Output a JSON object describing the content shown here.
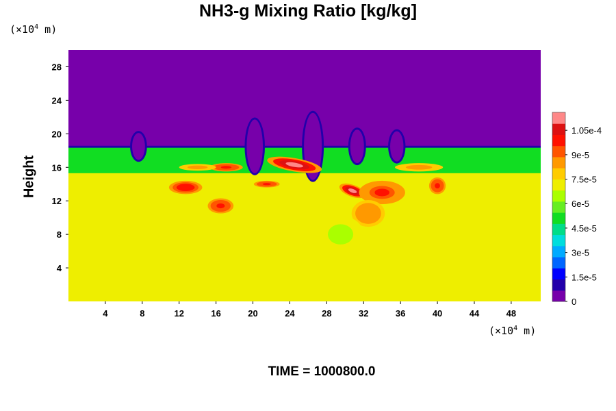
{
  "chart_data": {
    "type": "heatmap",
    "title": "NH3-g Mixing Ratio [kg/kg]",
    "ylabel": "Height",
    "xlabel": "",
    "x_unit": {
      "prefix": "(×10",
      "exp": "4",
      "suffix": " m)"
    },
    "y_unit": {
      "prefix": "(×10",
      "exp": "4",
      "suffix": " m)"
    },
    "x_ticks": [
      4,
      8,
      12,
      16,
      20,
      24,
      28,
      32,
      36,
      40,
      44,
      48
    ],
    "y_ticks": [
      4,
      8,
      12,
      16,
      20,
      24,
      28
    ],
    "xlim": [
      0,
      51.2
    ],
    "ylim": [
      0,
      30
    ],
    "colorbar": {
      "ticks": [
        0,
        1.5e-05,
        3e-05,
        4.5e-05,
        6e-05,
        7.5e-05,
        9e-05,
        0.000105
      ],
      "tick_labels": [
        "0",
        "1.5e-5",
        "3e-5",
        "4.5e-5",
        "6e-5",
        "7.5e-5",
        "9e-5",
        "1.05e-4"
      ],
      "range": [
        0,
        0.000116
      ],
      "colors": [
        "#7700aa",
        "#2200aa",
        "#0000ff",
        "#0066ff",
        "#00aaff",
        "#00dddd",
        "#00dd88",
        "#11dd22",
        "#66ee22",
        "#aaff00",
        "#eeee00",
        "#ffcc00",
        "#ff9900",
        "#ff5500",
        "#ff1100",
        "#dd1111",
        "#ff8888"
      ]
    },
    "field": {
      "upper_value": 0,
      "tropopause_height": 18.5,
      "band_range": [
        15.3,
        18.4
      ],
      "band_value": 5e-05,
      "lower_value": 7.5e-05,
      "dips": [
        {
          "x": 7.6,
          "depth": 1.6
        },
        {
          "x": 20.2,
          "depth": 3.2
        },
        {
          "x": 26.5,
          "depth": 4.0
        },
        {
          "x": 31.3,
          "depth": 2.0
        },
        {
          "x": 35.6,
          "depth": 1.8
        }
      ],
      "plumes": [
        {
          "x": 24.5,
          "y": 16.3,
          "rx": 3.0,
          "ry": 0.8,
          "v": 0.000112,
          "rot": 10
        },
        {
          "x": 30.8,
          "y": 13.2,
          "rx": 1.5,
          "ry": 0.7,
          "v": 0.000112,
          "rot": 20
        },
        {
          "x": 12.7,
          "y": 13.6,
          "rx": 1.8,
          "ry": 0.8,
          "v": 0.000102,
          "rot": 0
        },
        {
          "x": 17.1,
          "y": 16.0,
          "rx": 1.8,
          "ry": 0.5,
          "v": 0.0001,
          "rot": 0
        },
        {
          "x": 16.5,
          "y": 11.4,
          "rx": 1.4,
          "ry": 0.9,
          "v": 0.0001,
          "rot": 0
        },
        {
          "x": 40.0,
          "y": 13.8,
          "rx": 0.9,
          "ry": 1.0,
          "v": 0.0001,
          "rot": 0
        },
        {
          "x": 34.0,
          "y": 13.0,
          "rx": 2.5,
          "ry": 1.4,
          "v": 9.6e-05,
          "rot": 0
        },
        {
          "x": 32.5,
          "y": 10.5,
          "rx": 1.8,
          "ry": 1.6,
          "v": 8.8e-05,
          "rot": 0
        },
        {
          "x": 29.5,
          "y": 8.0,
          "rx": 2.5,
          "ry": 2.2,
          "v": 6.6e-05,
          "rot": 0
        },
        {
          "x": 14.0,
          "y": 16.0,
          "rx": 2.0,
          "ry": 0.4,
          "v": 8.6e-05,
          "rot": 0
        },
        {
          "x": 21.5,
          "y": 14.0,
          "rx": 1.4,
          "ry": 0.4,
          "v": 0.0001,
          "rot": 0
        },
        {
          "x": 38.0,
          "y": 16.0,
          "rx": 2.6,
          "ry": 0.5,
          "v": 8.6e-05,
          "rot": 0
        }
      ]
    }
  },
  "time_label": "TIME = 1000800.0"
}
